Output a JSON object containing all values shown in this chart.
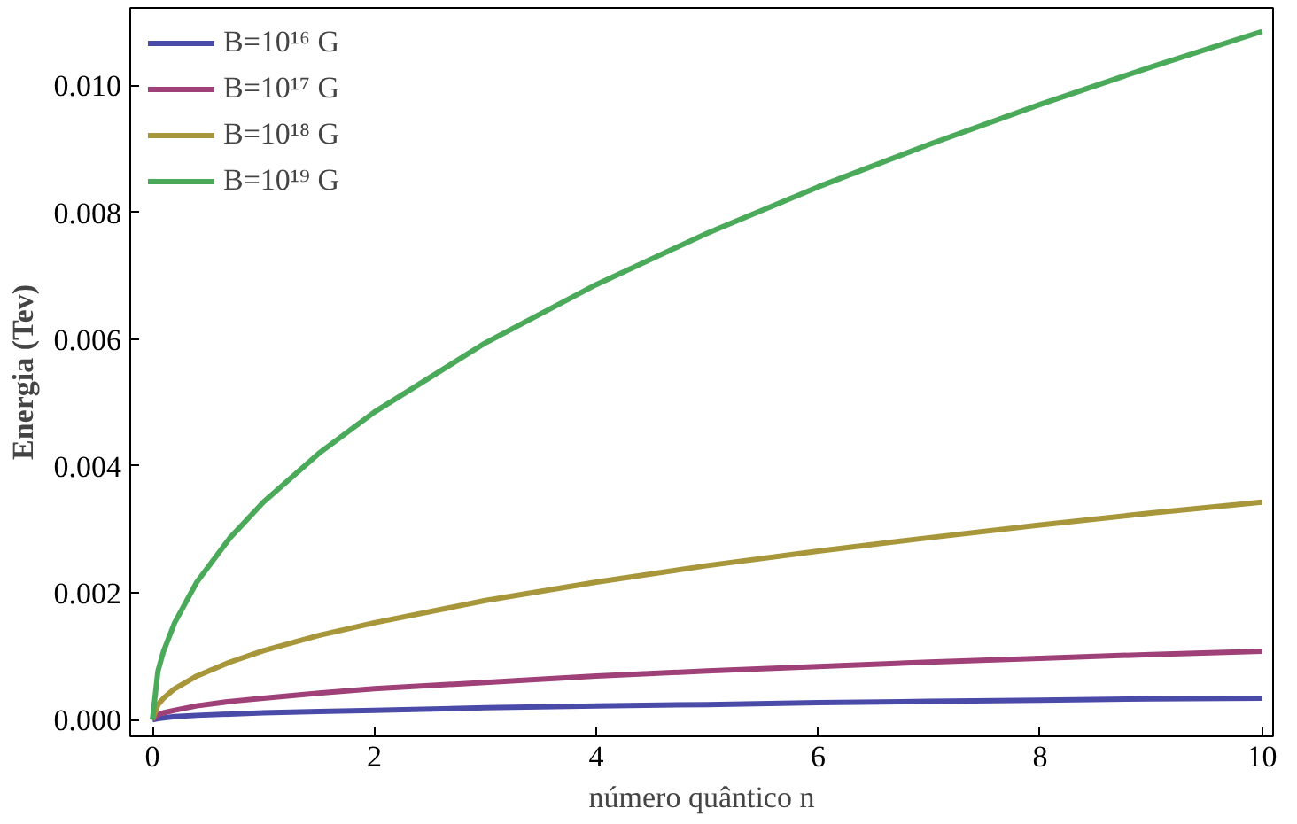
{
  "chart_data": {
    "type": "line",
    "xlabel": "número quântico n",
    "ylabel": "Energia (Tev)",
    "x": [
      0,
      0.05,
      0.1,
      0.2,
      0.4,
      0.7,
      1,
      1.5,
      2,
      3,
      4,
      5,
      6,
      7,
      8,
      9,
      10
    ],
    "series": [
      {
        "name": "B=10¹⁶ G",
        "color": "#4a4aa8",
        "values": [
          0,
          2e-05,
          3e-05,
          5e-05,
          7e-05,
          9e-05,
          0.00011,
          0.00013,
          0.00015,
          0.00019,
          0.00022,
          0.00024,
          0.00027,
          0.00029,
          0.00031,
          0.00033,
          0.00034
        ]
      },
      {
        "name": "B=10¹⁷ G",
        "color": "#a04078",
        "values": [
          0,
          8e-05,
          0.00011,
          0.00015,
          0.00022,
          0.00029,
          0.00034,
          0.00042,
          0.00049,
          0.00059,
          0.00069,
          0.00077,
          0.00084,
          0.00091,
          0.00097,
          0.00103,
          0.00108
        ]
      },
      {
        "name": "B=10¹⁸ G",
        "color": "#a8963a",
        "values": [
          0,
          0.00024,
          0.00034,
          0.00049,
          0.00069,
          0.00091,
          0.00109,
          0.00133,
          0.00153,
          0.00188,
          0.00217,
          0.00243,
          0.00266,
          0.00287,
          0.00307,
          0.00326,
          0.00343
        ]
      },
      {
        "name": "B=10¹⁹ G",
        "color": "#4aaa5a",
        "values": [
          0,
          0.00077,
          0.00108,
          0.00153,
          0.00217,
          0.00287,
          0.00343,
          0.0042,
          0.00485,
          0.00594,
          0.00686,
          0.00767,
          0.0084,
          0.00907,
          0.0097,
          0.01029,
          0.01085
        ]
      }
    ],
    "xlim": [
      -0.2,
      10.1
    ],
    "ylim": [
      -0.00026,
      0.01122
    ],
    "xticks": [
      0,
      2,
      4,
      6,
      8,
      10
    ],
    "yticks": [
      {
        "value": 0,
        "label": "0.000"
      },
      {
        "value": 0.002,
        "label": "0.002"
      },
      {
        "value": 0.004,
        "label": "0.004"
      },
      {
        "value": 0.006,
        "label": "0.006"
      },
      {
        "value": 0.008,
        "label": "0.008"
      },
      {
        "value": 0.01,
        "label": "0.010"
      }
    ],
    "legend": "top left",
    "grid": false
  }
}
